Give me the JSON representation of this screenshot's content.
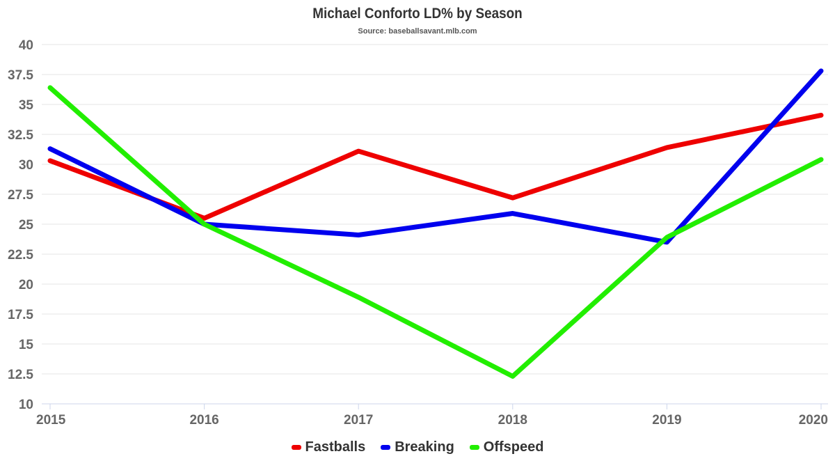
{
  "chart_data": {
    "type": "line",
    "title": "Michael Conforto LD% by Season",
    "subtitle": "Source: baseballsavant.mlb.com",
    "xlabel": "",
    "ylabel": "",
    "x": [
      "2015",
      "2016",
      "2017",
      "2018",
      "2019",
      "2020"
    ],
    "ylim": [
      10,
      40
    ],
    "yticks": [
      "10",
      "12.5",
      "15",
      "17.5",
      "20",
      "22.5",
      "25",
      "27.5",
      "30",
      "32.5",
      "35",
      "37.5",
      "40"
    ],
    "grid": true,
    "legend_position": "bottom",
    "series": [
      {
        "name": "Fastballs",
        "color": "#ee0000",
        "values": [
          30.3,
          25.5,
          31.1,
          27.2,
          31.4,
          34.1
        ]
      },
      {
        "name": "Breaking",
        "color": "#0000ee",
        "values": [
          31.3,
          25.0,
          24.1,
          25.9,
          23.5,
          37.8
        ]
      },
      {
        "name": "Offspeed",
        "color": "#22ee00",
        "values": [
          36.4,
          25.0,
          18.9,
          12.3,
          23.9,
          30.4
        ]
      }
    ]
  }
}
